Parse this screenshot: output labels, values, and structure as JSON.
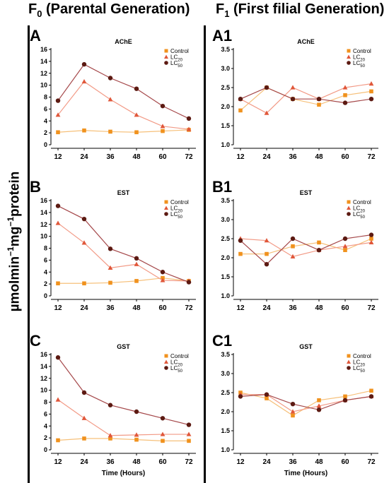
{
  "headers": {
    "left_main": "F",
    "left_sub": "0",
    "left_rest": " (Parental Generation)",
    "right_main": "F",
    "right_sub": "1",
    "right_rest": " (First filial Generation)"
  },
  "ylabel": {
    "part1": "µmolmin",
    "sup1": "−1",
    "part2": "mg",
    "sup2": "−1",
    "part3": "protein"
  },
  "colors": {
    "control": "#F0921E",
    "lc20": "#E0573A",
    "lc50": "#5C1A12",
    "lc20_line": "#F29A86",
    "lc50_line": "#A5484A",
    "control_line": "#F6C07A"
  },
  "chart_data": [
    {
      "type": "line",
      "panel": "A",
      "title": "AChE",
      "xlabel": "",
      "x": [
        12,
        24,
        36,
        48,
        60,
        72
      ],
      "ylim": [
        0,
        16
      ],
      "yticks": [
        0,
        2,
        4,
        6,
        8,
        10,
        12,
        14,
        16
      ],
      "series": [
        {
          "name": "Control",
          "marker": "square",
          "values": [
            2.1,
            2.4,
            2.2,
            2.1,
            2.3,
            2.5
          ]
        },
        {
          "name": "LC",
          "sub": "20",
          "marker": "triangle",
          "values": [
            5.0,
            10.6,
            7.6,
            5.0,
            3.1,
            2.6
          ]
        },
        {
          "name": "LC",
          "sub": "50",
          "marker": "circle",
          "values": [
            7.4,
            13.5,
            11.2,
            9.4,
            6.5,
            4.4
          ]
        }
      ]
    },
    {
      "type": "line",
      "panel": "A1",
      "title": "AChE",
      "xlabel": "",
      "x": [
        12,
        24,
        36,
        48,
        60,
        72
      ],
      "ylim": [
        1.0,
        3.5
      ],
      "yticks": [
        1.0,
        1.5,
        2.0,
        2.5,
        3.0,
        3.5
      ],
      "series": [
        {
          "name": "Control",
          "marker": "square",
          "values": [
            1.9,
            2.5,
            2.2,
            2.05,
            2.3,
            2.4
          ]
        },
        {
          "name": "LC",
          "sub": "20",
          "marker": "triangle",
          "values": [
            2.2,
            1.83,
            2.5,
            2.2,
            2.5,
            2.6
          ]
        },
        {
          "name": "LC",
          "sub": "50",
          "marker": "circle",
          "values": [
            2.2,
            2.5,
            2.2,
            2.2,
            2.1,
            2.2
          ]
        }
      ]
    },
    {
      "type": "line",
      "panel": "B",
      "title": "EST",
      "xlabel": "",
      "x": [
        12,
        24,
        36,
        48,
        60,
        72
      ],
      "ylim": [
        0,
        16
      ],
      "yticks": [
        0,
        2,
        4,
        6,
        8,
        10,
        12,
        14,
        16
      ],
      "series": [
        {
          "name": "Control",
          "marker": "square",
          "values": [
            2.1,
            2.1,
            2.2,
            2.5,
            3.0,
            2.5
          ]
        },
        {
          "name": "LC",
          "sub": "20",
          "marker": "triangle",
          "values": [
            12.2,
            8.9,
            4.7,
            5.3,
            2.6,
            2.5
          ]
        },
        {
          "name": "LC",
          "sub": "50",
          "marker": "circle",
          "values": [
            15.1,
            12.9,
            7.9,
            6.3,
            4.0,
            2.3
          ]
        }
      ]
    },
    {
      "type": "line",
      "panel": "B1",
      "title": "EST",
      "xlabel": "",
      "x": [
        12,
        24,
        36,
        48,
        60,
        72
      ],
      "ylim": [
        1.0,
        3.5
      ],
      "yticks": [
        1.0,
        1.5,
        2.0,
        2.5,
        3.0,
        3.5
      ],
      "series": [
        {
          "name": "Control",
          "marker": "square",
          "values": [
            2.1,
            2.1,
            2.3,
            2.4,
            2.2,
            2.5
          ]
        },
        {
          "name": "LC",
          "sub": "20",
          "marker": "triangle",
          "values": [
            2.5,
            2.45,
            2.03,
            2.2,
            2.3,
            2.4
          ]
        },
        {
          "name": "LC",
          "sub": "50",
          "marker": "circle",
          "values": [
            2.45,
            1.83,
            2.5,
            2.2,
            2.5,
            2.6
          ]
        }
      ]
    },
    {
      "type": "line",
      "panel": "C",
      "title": "GST",
      "xlabel": "Time (Hours)",
      "x": [
        12,
        24,
        36,
        48,
        60,
        72
      ],
      "ylim": [
        0,
        16
      ],
      "yticks": [
        0,
        2,
        4,
        6,
        8,
        10,
        12,
        14,
        16
      ],
      "series": [
        {
          "name": "Control",
          "marker": "square",
          "values": [
            1.6,
            1.9,
            1.9,
            1.7,
            1.5,
            1.5
          ]
        },
        {
          "name": "LC",
          "sub": "20",
          "marker": "triangle",
          "values": [
            8.4,
            5.3,
            2.4,
            2.5,
            2.6,
            2.6
          ]
        },
        {
          "name": "LC",
          "sub": "50",
          "marker": "circle",
          "values": [
            15.5,
            9.6,
            7.5,
            6.4,
            5.3,
            4.2
          ]
        }
      ]
    },
    {
      "type": "line",
      "panel": "C1",
      "title": "GST",
      "xlabel": "Time (Hours)",
      "x": [
        12,
        24,
        36,
        48,
        60,
        72
      ],
      "ylim": [
        1.0,
        3.5
      ],
      "yticks": [
        1.0,
        1.5,
        2.0,
        2.5,
        3.0,
        3.5
      ],
      "series": [
        {
          "name": "Control",
          "marker": "square",
          "values": [
            2.5,
            2.35,
            1.9,
            2.3,
            2.4,
            2.55
          ]
        },
        {
          "name": "LC",
          "sub": "20",
          "marker": "triangle",
          "values": [
            2.45,
            2.45,
            2.0,
            2.15,
            2.3,
            2.4
          ]
        },
        {
          "name": "LC",
          "sub": "50",
          "marker": "circle",
          "values": [
            2.4,
            2.45,
            2.2,
            2.05,
            2.3,
            2.4
          ]
        }
      ]
    }
  ]
}
